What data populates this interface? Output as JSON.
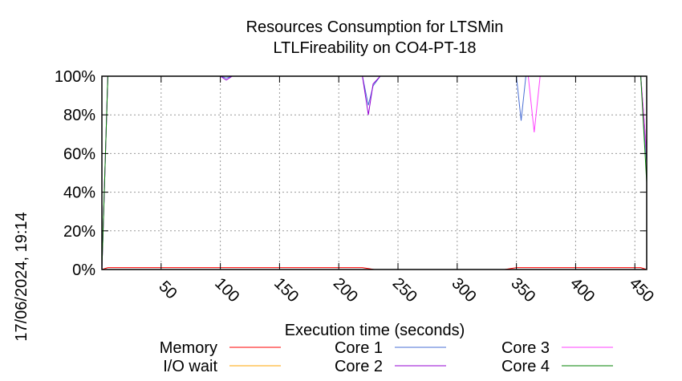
{
  "chart_data": {
    "type": "line",
    "title": "Resources Consumption for LTSMin",
    "subtitle": "LTLFireability on CO4-PT-18",
    "xlabel": "Execution time (seconds)",
    "ylabel": "",
    "side_label": "17/06/2024, 19:14",
    "xlim": [
      0,
      460
    ],
    "ylim": [
      0,
      100
    ],
    "x_ticks": [
      50,
      100,
      150,
      200,
      250,
      300,
      350,
      400,
      450
    ],
    "x_tick_labels": [
      "50",
      "100",
      "150",
      "200",
      "250",
      "300",
      "350",
      "400",
      "450"
    ],
    "y_ticks": [
      0,
      20,
      40,
      60,
      80,
      100
    ],
    "y_tick_labels": [
      "0%",
      "20%",
      "40%",
      "60%",
      "80%",
      "100%"
    ],
    "grid": true,
    "legend_placement": "bottom",
    "series": [
      {
        "name": "Memory",
        "color": "#ff0000",
        "x": [
          0,
          5,
          100,
          220,
          230,
          340,
          350,
          455,
          460
        ],
        "y": [
          0,
          1,
          1,
          1,
          0,
          0,
          1,
          1,
          0
        ]
      },
      {
        "name": "I/O wait",
        "color": "#ffa500",
        "x": [
          0,
          460
        ],
        "y": [
          0,
          0
        ]
      },
      {
        "name": "Core 1",
        "color": "#4a6fd4",
        "x": [
          0,
          5,
          100,
          105,
          110,
          220,
          225,
          229,
          235,
          350,
          354,
          358,
          362,
          455,
          460
        ],
        "y": [
          0,
          100,
          100,
          99,
          100,
          100,
          85,
          95,
          100,
          100,
          77,
          100,
          100,
          100,
          55
        ]
      },
      {
        "name": "Core 2",
        "color": "#9400d3",
        "x": [
          0,
          5,
          100,
          105,
          110,
          220,
          225,
          229,
          235,
          455,
          460
        ],
        "y": [
          0,
          100,
          100,
          98,
          100,
          100,
          80,
          96,
          100,
          100,
          60
        ]
      },
      {
        "name": "Core 3",
        "color": "#ff40ff",
        "x": [
          0,
          5,
          360,
          365,
          370,
          455,
          460
        ],
        "y": [
          0,
          100,
          100,
          71,
          100,
          100,
          59
        ]
      },
      {
        "name": "Core 4",
        "color": "#008000",
        "x": [
          0,
          5,
          455,
          460
        ],
        "y": [
          0,
          100,
          100,
          45
        ]
      }
    ]
  }
}
